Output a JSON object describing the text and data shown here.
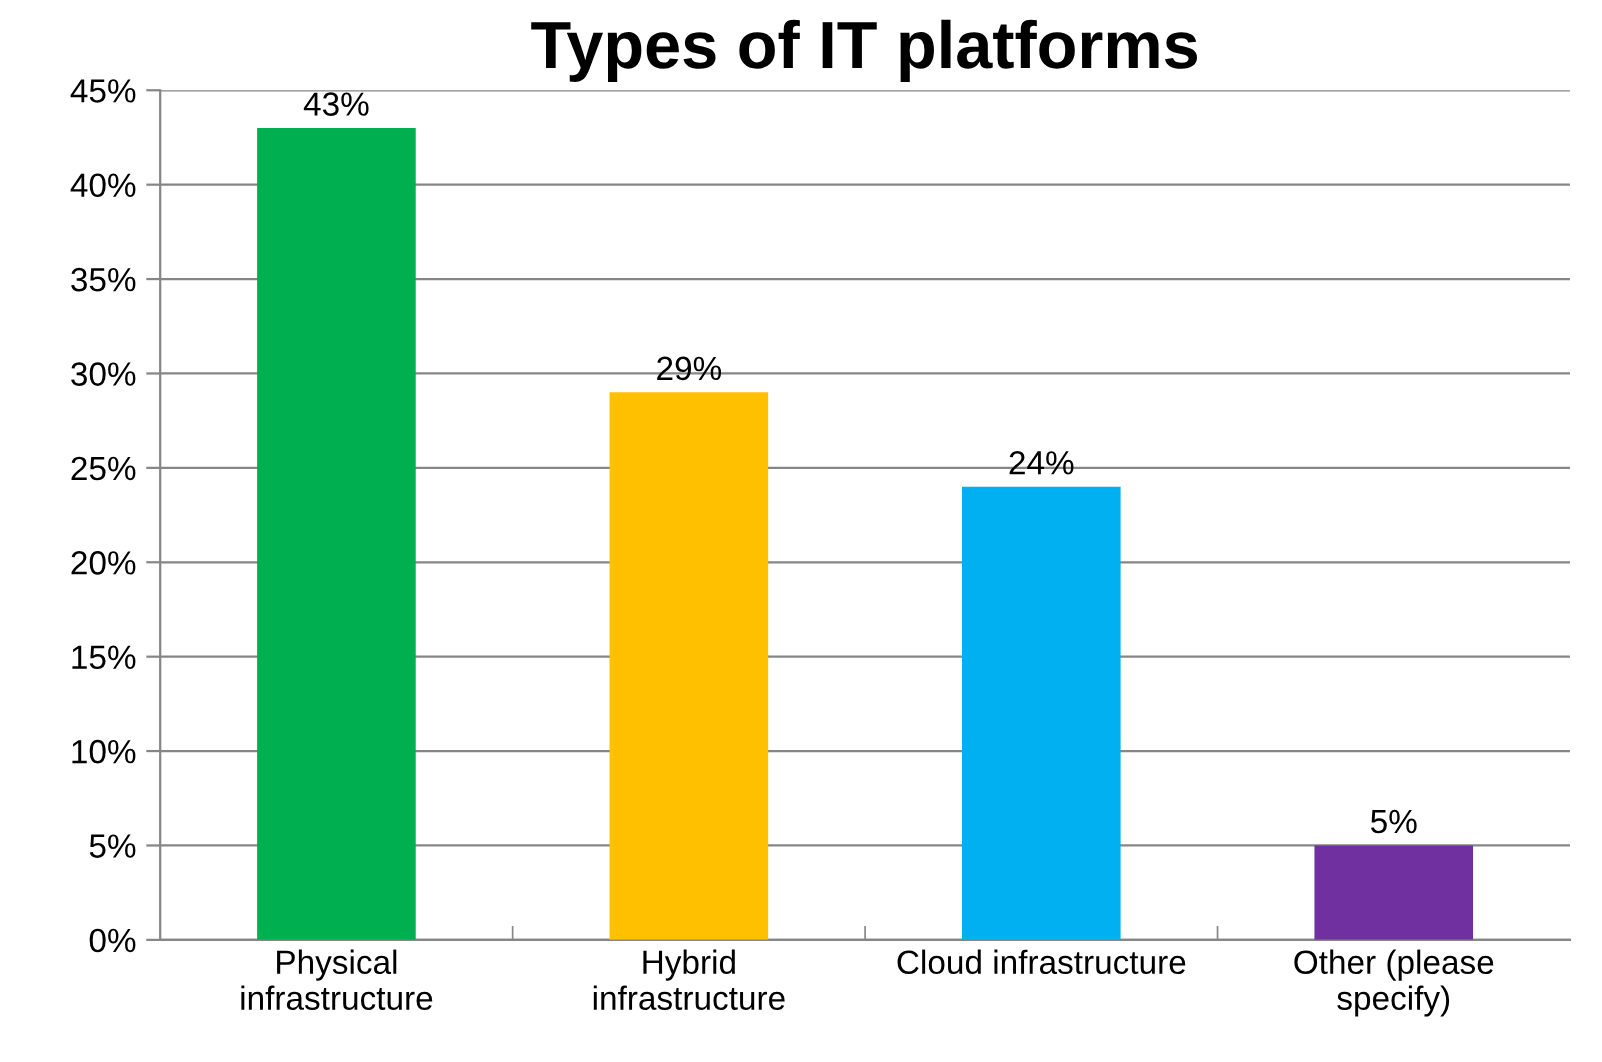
{
  "chart_data": {
    "type": "bar",
    "title": "Types of IT platforms",
    "categories": [
      "Physical\ninfrastructure",
      "Hybrid\ninfrastructure",
      "Cloud infrastructure",
      "Other (please\nspecify)"
    ],
    "values": [
      43,
      29,
      24,
      5
    ],
    "colors": [
      "#00b050",
      "#ffc000",
      "#00b0f0",
      "#7030a0"
    ],
    "value_labels": [
      "43%",
      "29%",
      "24%",
      "5%"
    ],
    "ylim": [
      0,
      45
    ],
    "yticks": [
      {
        "value": 0,
        "label": "0%"
      },
      {
        "value": 5,
        "label": "5%"
      },
      {
        "value": 10,
        "label": "10%"
      },
      {
        "value": 15,
        "label": "15%"
      },
      {
        "value": 20,
        "label": "20%"
      },
      {
        "value": 25,
        "label": "25%"
      },
      {
        "value": 30,
        "label": "30%"
      },
      {
        "value": 35,
        "label": "35%"
      },
      {
        "value": 40,
        "label": "40%"
      },
      {
        "value": 45,
        "label": "45%"
      }
    ],
    "grid": "y",
    "legend": false
  }
}
